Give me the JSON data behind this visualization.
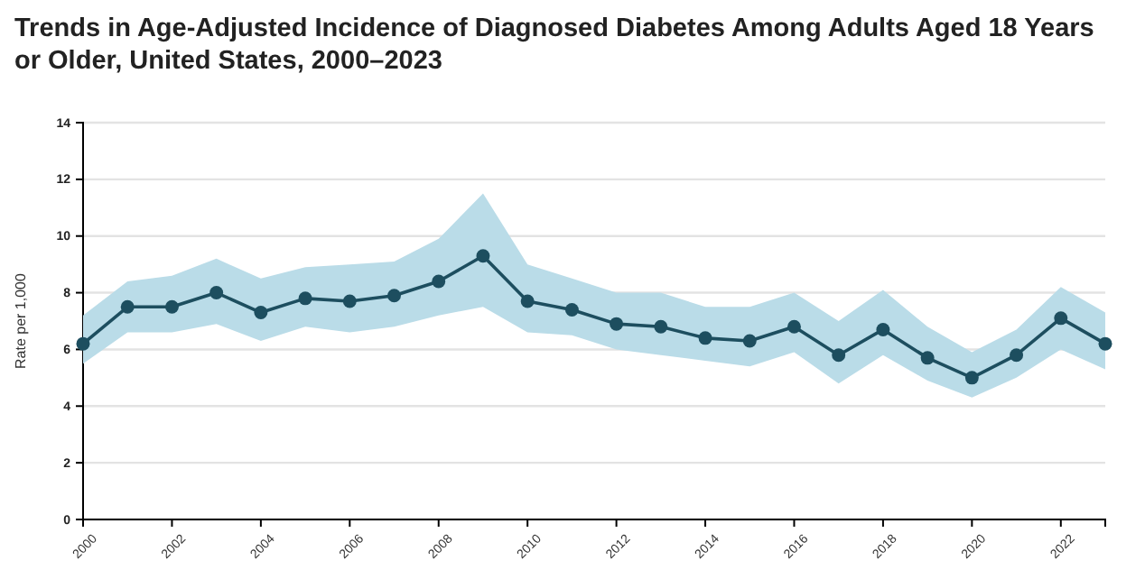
{
  "chart_data": {
    "type": "line",
    "title": "Trends in Age-Adjusted Incidence of Diagnosed Diabetes Among Adults Aged 18 Years or Older, United States, 2000–2023",
    "ylabel": "Rate per 1,000",
    "x": [
      2000,
      2001,
      2002,
      2003,
      2004,
      2005,
      2006,
      2007,
      2008,
      2009,
      2010,
      2011,
      2012,
      2013,
      2014,
      2015,
      2016,
      2017,
      2018,
      2019,
      2020,
      2021,
      2022,
      2023
    ],
    "series": [
      {
        "color": "#1d4e5f",
        "values": [
          6.2,
          7.5,
          7.5,
          8.0,
          7.3,
          7.8,
          7.7,
          7.9,
          8.4,
          9.3,
          7.7,
          7.4,
          6.9,
          6.8,
          6.4,
          6.3,
          6.8,
          5.8,
          6.7,
          5.7,
          5.0,
          5.8,
          7.1,
          6.2
        ],
        "lower": [
          5.5,
          6.6,
          6.6,
          6.9,
          6.3,
          6.8,
          6.6,
          6.8,
          7.2,
          7.5,
          6.6,
          6.5,
          6.0,
          5.8,
          5.6,
          5.4,
          5.9,
          4.8,
          5.8,
          4.9,
          4.3,
          5.0,
          6.0,
          5.3
        ],
        "upper": [
          7.2,
          8.4,
          8.6,
          9.2,
          8.5,
          8.9,
          9.0,
          9.1,
          9.9,
          11.5,
          9.0,
          8.5,
          8.0,
          8.0,
          7.5,
          7.5,
          8.0,
          7.0,
          8.1,
          6.8,
          5.9,
          6.7,
          8.2,
          7.3
        ]
      }
    ],
    "xlim": [
      2000,
      2023
    ],
    "xticks": [
      {
        "value": 2000,
        "label": "2000"
      },
      {
        "value": 2002,
        "label": "2002"
      },
      {
        "value": 2004,
        "label": "2004"
      },
      {
        "value": 2006,
        "label": "2006"
      },
      {
        "value": 2008,
        "label": "2008"
      },
      {
        "value": 2010,
        "label": "2010"
      },
      {
        "value": 2012,
        "label": "2012"
      },
      {
        "value": 2014,
        "label": "2014"
      },
      {
        "value": 2016,
        "label": "2016"
      },
      {
        "value": 2018,
        "label": "2018"
      },
      {
        "value": 2020,
        "label": "2020"
      },
      {
        "value": 2022,
        "label": "2022"
      },
      {
        "value": 2023,
        "label": null
      }
    ],
    "ylim": [
      0,
      14
    ],
    "yticks": [
      0,
      2,
      4,
      6,
      8,
      10,
      12,
      14
    ],
    "grid": "y",
    "marker": "circle",
    "line_style": "solid"
  }
}
